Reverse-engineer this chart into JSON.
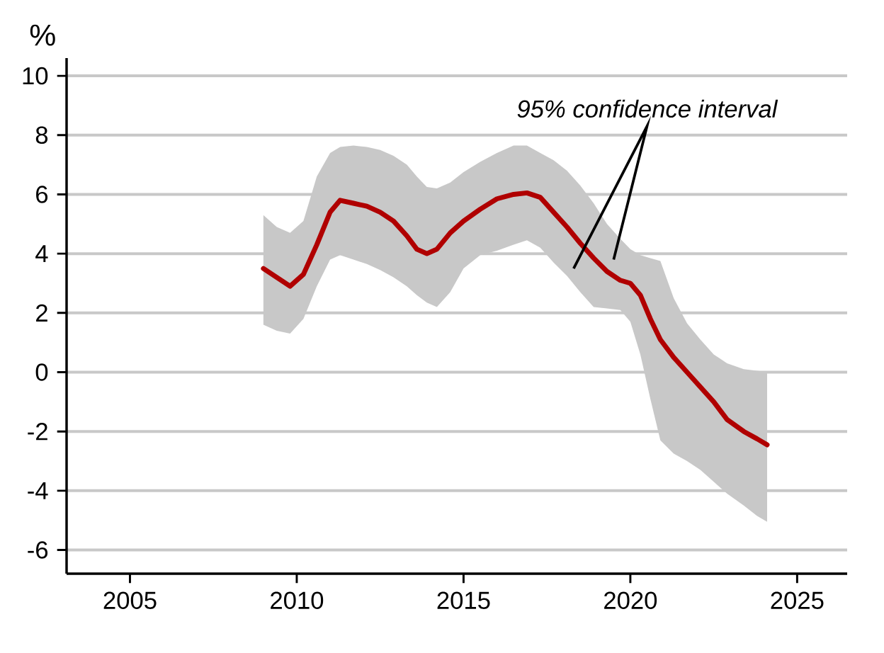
{
  "chart_data": {
    "type": "line",
    "ylabel": "%",
    "annotations": [
      "*95% confidence interval*"
    ],
    "x": [
      2009.0,
      2009.4,
      2009.8,
      2010.2,
      2010.6,
      2011.0,
      2011.3,
      2011.7,
      2012.1,
      2012.5,
      2012.9,
      2013.3,
      2013.6,
      2013.9,
      2014.2,
      2014.6,
      2015.0,
      2015.5,
      2016.0,
      2016.5,
      2016.9,
      2017.3,
      2017.7,
      2018.1,
      2018.5,
      2018.9,
      2019.3,
      2019.7,
      2020.0,
      2020.3,
      2020.6,
      2020.9,
      2021.3,
      2021.7,
      2022.1,
      2022.5,
      2022.9,
      2023.4,
      2023.8,
      2024.1
    ],
    "series": [
      {
        "color": "#b00000",
        "values": [
          3.5,
          3.2,
          2.9,
          3.3,
          4.3,
          5.4,
          5.8,
          5.7,
          5.6,
          5.4,
          5.1,
          4.6,
          4.15,
          4.0,
          4.15,
          4.7,
          5.1,
          5.5,
          5.85,
          6.0,
          6.05,
          5.9,
          5.4,
          4.9,
          4.35,
          3.85,
          3.4,
          3.1,
          3.0,
          2.6,
          1.8,
          1.1,
          0.5,
          0.0,
          -0.5,
          -1.0,
          -1.6,
          -2.0,
          -2.25,
          -2.45
        ],
        "upper": [
          5.3,
          4.9,
          4.7,
          5.1,
          6.6,
          7.4,
          7.6,
          7.65,
          7.6,
          7.5,
          7.3,
          7.0,
          6.6,
          6.25,
          6.2,
          6.4,
          6.75,
          7.1,
          7.4,
          7.65,
          7.65,
          7.4,
          7.15,
          6.8,
          6.3,
          5.7,
          5.0,
          4.5,
          4.15,
          3.95,
          3.85,
          3.75,
          2.5,
          1.65,
          1.1,
          0.6,
          0.3,
          0.1,
          0.05,
          0.0
        ],
        "lower": [
          1.6,
          1.4,
          1.3,
          1.8,
          2.9,
          3.8,
          3.95,
          3.8,
          3.65,
          3.45,
          3.2,
          2.9,
          2.6,
          2.35,
          2.2,
          2.7,
          3.5,
          3.95,
          4.1,
          4.3,
          4.45,
          4.2,
          3.7,
          3.25,
          2.7,
          2.2,
          2.15,
          2.1,
          1.7,
          0.6,
          -0.9,
          -2.3,
          -2.75,
          -3.0,
          -3.3,
          -3.7,
          -4.1,
          -4.5,
          -4.85,
          -5.05
        ]
      }
    ],
    "xlim": [
      2003.1,
      2026.5
    ],
    "ylim": [
      -6.8,
      10.6
    ],
    "xticks": [
      2005,
      2010,
      2015,
      2020,
      2025
    ],
    "yticks": [
      -6,
      -4,
      -2,
      0,
      2,
      4,
      6,
      8,
      10
    ],
    "grid": "y",
    "marker": "none",
    "line_style": "solid"
  }
}
